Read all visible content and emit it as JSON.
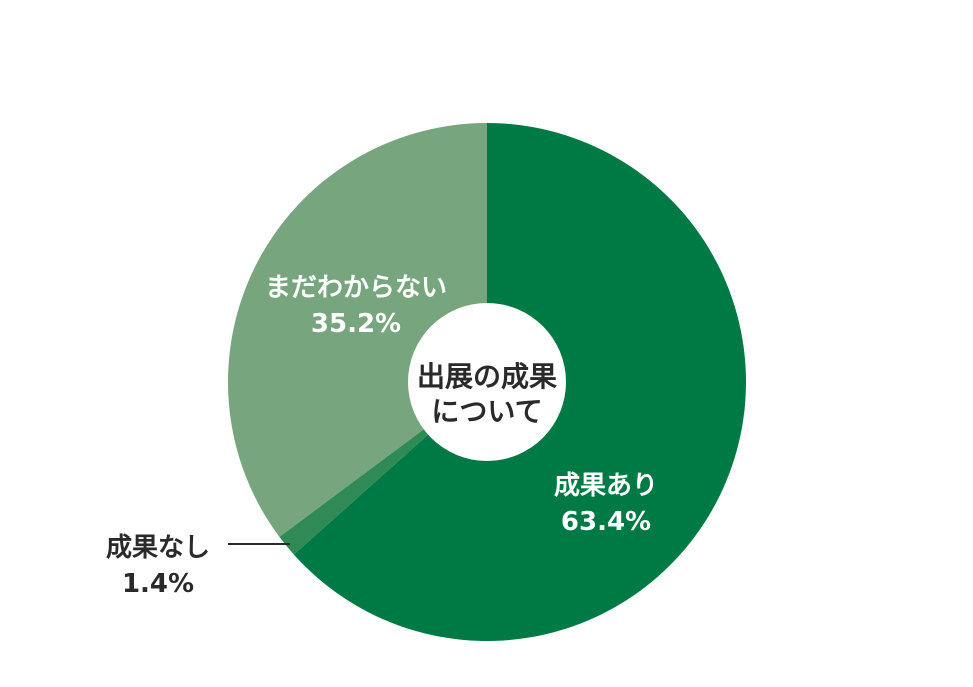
{
  "chart_data": {
    "type": "pie",
    "title": "出展の成果について",
    "title_lines": [
      "出展の成果",
      "について"
    ],
    "slices": [
      {
        "name": "成果あり",
        "value": 63.4,
        "value_label": "63.4%",
        "color": "#007a45",
        "label_color": "#ffffff"
      },
      {
        "name": "成果なし",
        "value": 1.4,
        "value_label": "1.4%",
        "color": "#2f8a56",
        "label_color": "#2a2a2a"
      },
      {
        "name": "まだわからない",
        "value": 35.2,
        "value_label": "35.2%",
        "color": "#77a67e",
        "label_color": "#ffffff"
      }
    ],
    "start": "top",
    "direction": "clockwise",
    "donut_center": true
  }
}
